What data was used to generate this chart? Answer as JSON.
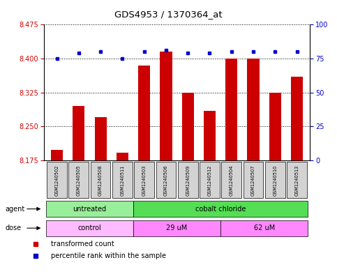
{
  "title": "GDS4953 / 1370364_at",
  "samples": [
    "GSM1240502",
    "GSM1240505",
    "GSM1240508",
    "GSM1240511",
    "GSM1240503",
    "GSM1240506",
    "GSM1240509",
    "GSM1240512",
    "GSM1240504",
    "GSM1240507",
    "GSM1240510",
    "GSM1240513"
  ],
  "bar_values": [
    8.198,
    8.295,
    8.27,
    8.192,
    8.385,
    8.415,
    8.325,
    8.285,
    8.4,
    8.4,
    8.325,
    8.36
  ],
  "blue_values": [
    75,
    79,
    80,
    75,
    80,
    81,
    79,
    79,
    80,
    80,
    80,
    80
  ],
  "bar_color": "#cc0000",
  "dot_color": "#0000cc",
  "ylim_left": [
    8.175,
    8.475
  ],
  "ylim_right": [
    0,
    100
  ],
  "yticks_left": [
    8.175,
    8.25,
    8.325,
    8.4,
    8.475
  ],
  "yticks_right": [
    0,
    25,
    50,
    75,
    100
  ],
  "agent_groups": [
    {
      "label": "untreated",
      "start": 0,
      "end": 4,
      "color": "#99ee99"
    },
    {
      "label": "cobalt chloride",
      "start": 4,
      "end": 12,
      "color": "#55dd55"
    }
  ],
  "dose_groups": [
    {
      "label": "control",
      "start": 0,
      "end": 4,
      "color": "#ffbbff"
    },
    {
      "label": "29 uM",
      "start": 4,
      "end": 8,
      "color": "#ff88ff"
    },
    {
      "label": "62 uM",
      "start": 8,
      "end": 12,
      "color": "#ff88ff"
    }
  ],
  "legend_items": [
    {
      "label": "transformed count",
      "color": "#cc0000"
    },
    {
      "label": "percentile rank within the sample",
      "color": "#0000cc"
    }
  ],
  "background_color": "#ffffff",
  "tick_color_left": "#cc0000",
  "tick_color_right": "#0000cc",
  "sample_box_color": "#d3d3d3"
}
